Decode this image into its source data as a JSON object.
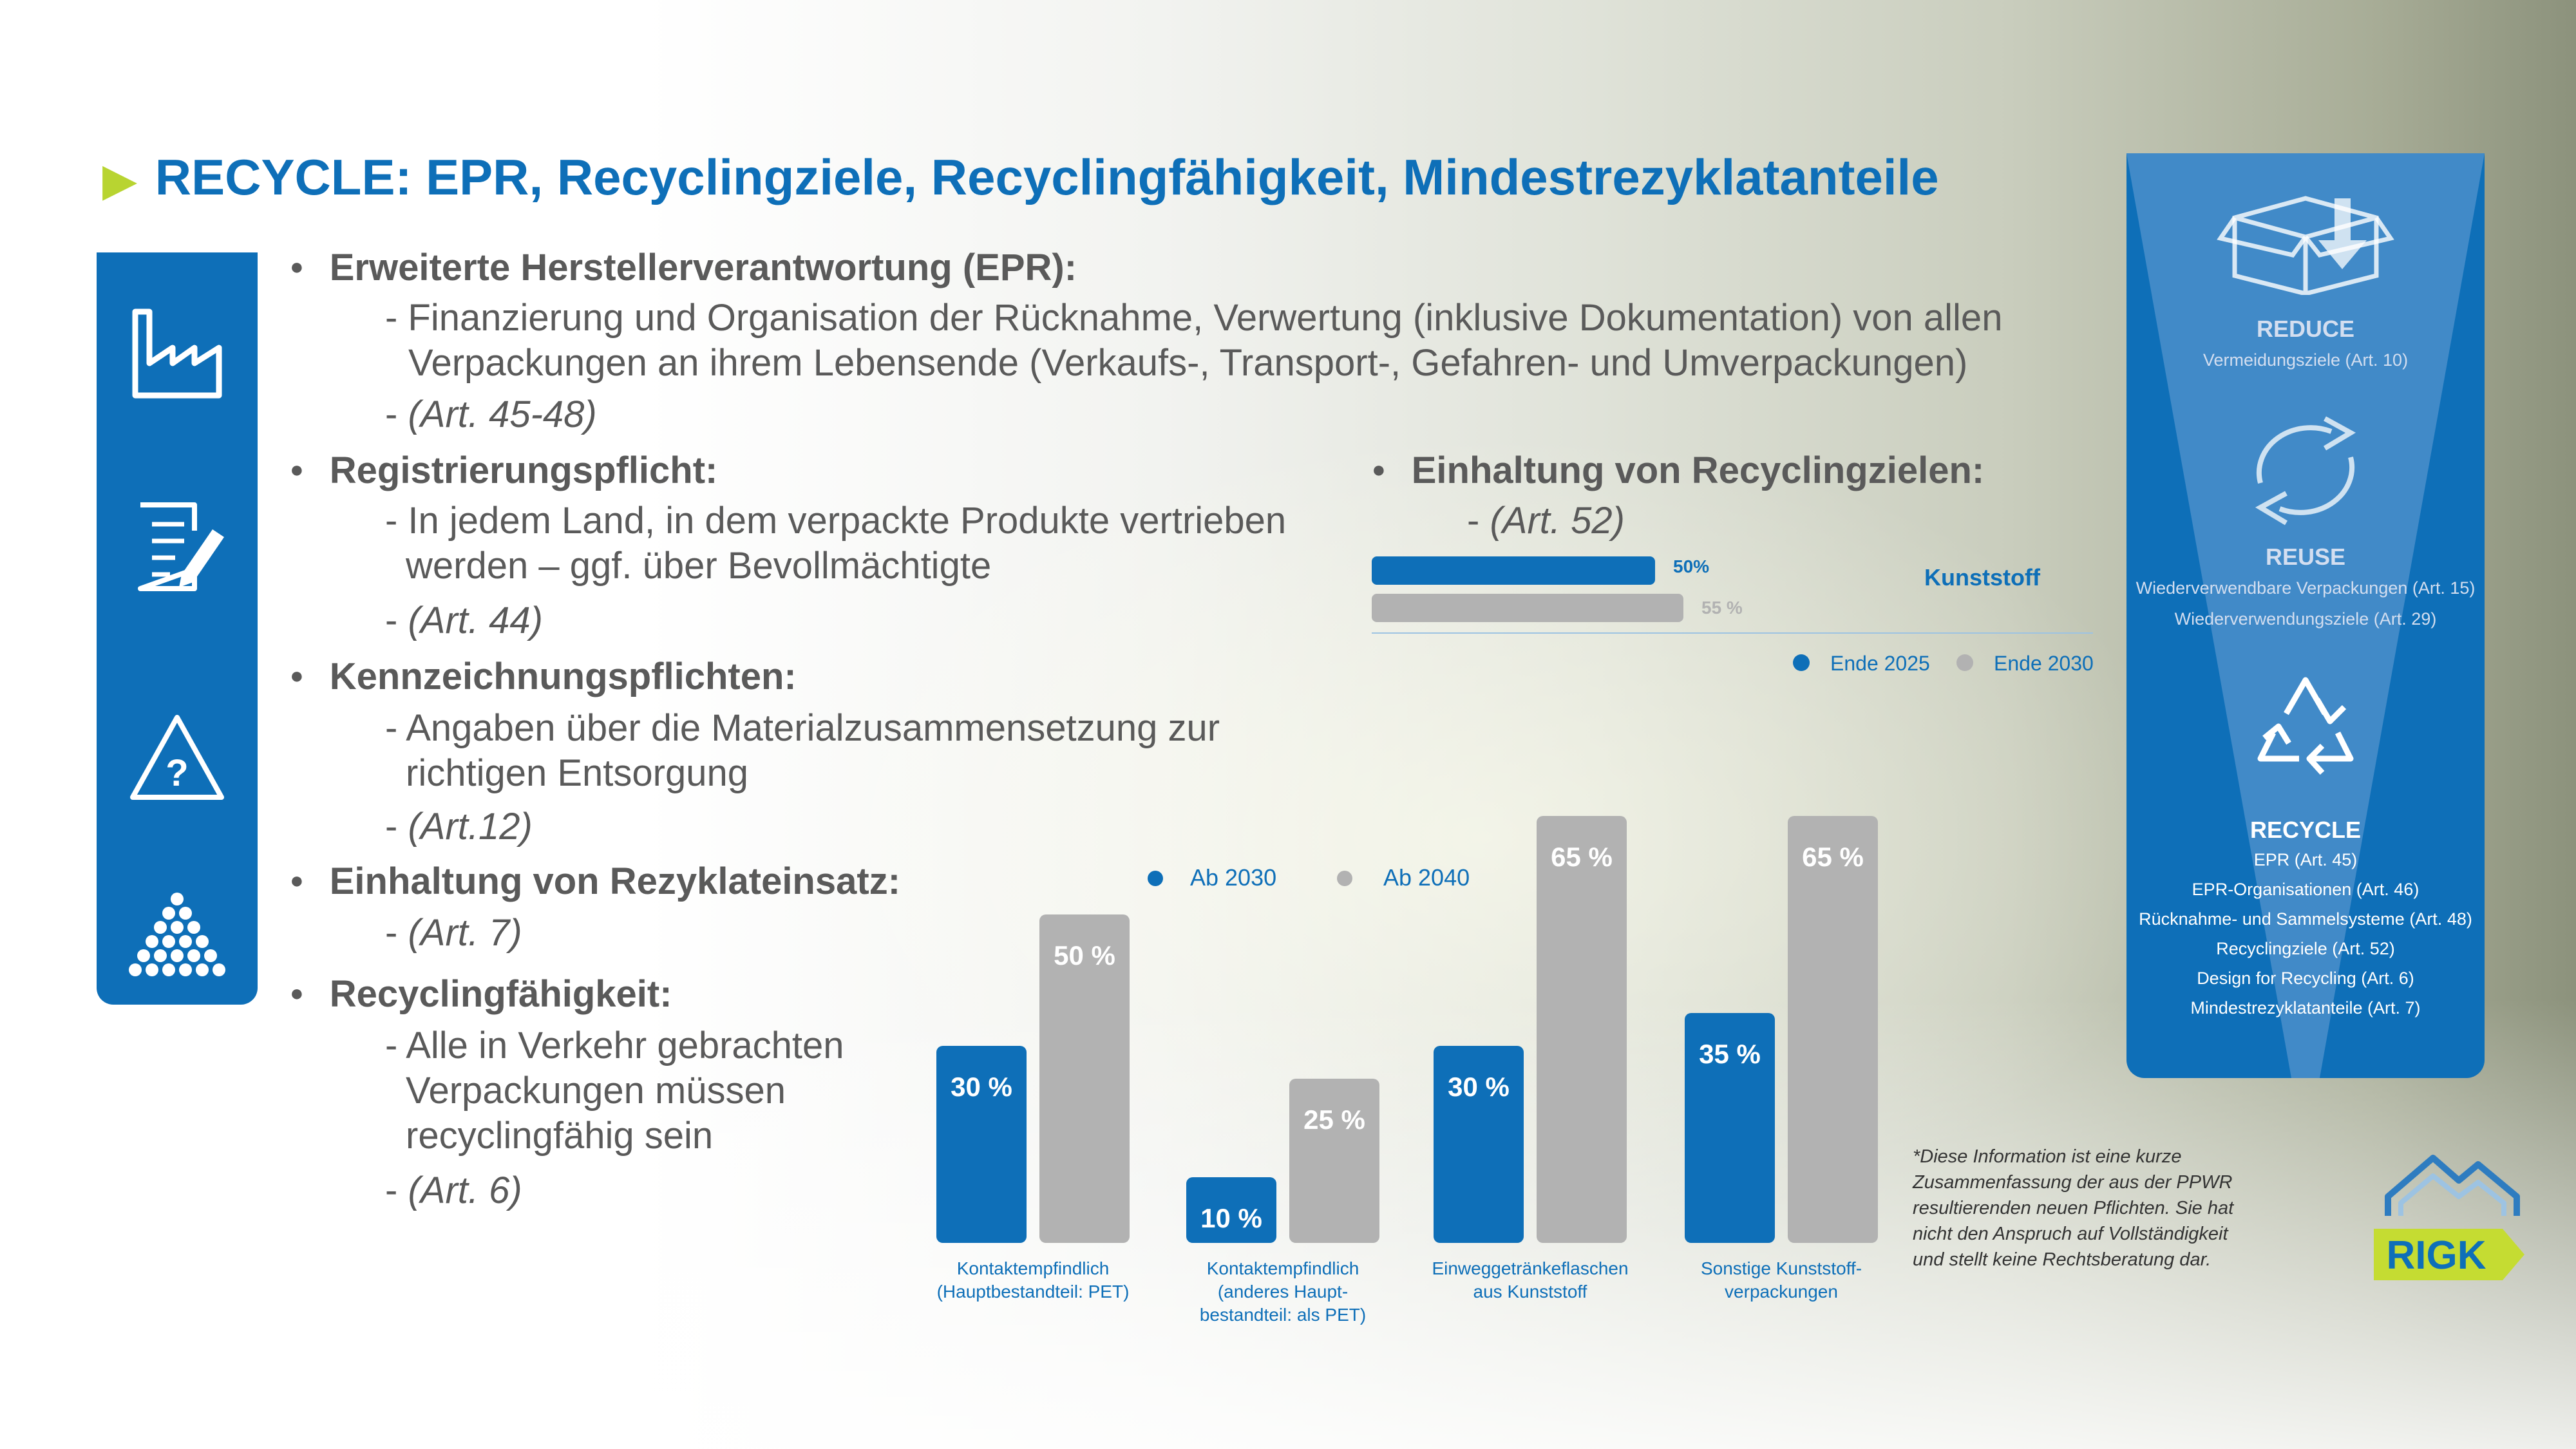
{
  "title": "RECYCLE: EPR, Recyclingziele, Recyclingfähigkeit, Mindestrezyklatanteile",
  "bullets": {
    "epr": {
      "heading": "Erweiterte Herstellerverantwortung (EPR):",
      "line1": "- Finanzierung und Organisation der Rücknahme, Verwertung (inklusive Dokumentation) von allen",
      "line2": "Verpackungen an ihrem Lebensende (Verkaufs-, Transport-, Gefahren- und Umverpackungen)",
      "ref": "(Art. 45-48)"
    },
    "registration": {
      "heading": "Registrierungspflicht:",
      "line1": "- In jedem Land, in dem verpackte Produkte vertrieben",
      "line2": "werden – ggf. über Bevollmächtigte",
      "ref": "(Art. 44)"
    },
    "labeling": {
      "heading": "Kennzeichnungspflichten:",
      "line1": "- Angaben über die Materialzusammensetzung zur",
      "line2": "richtigen Entsorgung",
      "ref": "(Art.12)"
    },
    "recyclate": {
      "heading": "Einhaltung von Rezyklateinsatz:",
      "ref": "(Art. 7)"
    },
    "recyclability": {
      "heading": "Recyclingfähigkeit:",
      "line1": "- Alle in Verkehr gebrachten",
      "line2": "Verpackungen müssen",
      "line3": "recyclingfähig sein",
      "ref": "(Art. 6)"
    },
    "targets": {
      "heading": "Einhaltung von Recyclingzielen:",
      "ref": "(Art. 52)"
    }
  },
  "ref_prefix": "- ",
  "icons": [
    "factory-icon",
    "document-pen-icon",
    "warning-question-icon",
    "pellets-icon"
  ],
  "panel": {
    "reduce": {
      "title": "REDUCE",
      "lines": [
        "Vermeidungsziele (Art. 10)"
      ]
    },
    "reuse": {
      "title": "REUSE",
      "lines": [
        "Wiederverwendbare Verpackungen (Art. 15)",
        "Wiederverwendungsziele (Art. 29)"
      ]
    },
    "recycle": {
      "title": "RECYCLE",
      "lines": [
        "EPR (Art. 45)",
        "EPR-Organisationen (Art. 46)",
        "Rücknahme- und Sammelsysteme (Art. 48)",
        "Recyclingziele (Art. 52)",
        "Design for Recycling (Art. 6)",
        "Mindestrezyklatanteile (Art. 7)"
      ]
    }
  },
  "colors": {
    "blue": "#0e6fb8",
    "grey": "#b2b2b2",
    "accent": "#b8d431"
  },
  "chart_data": [
    {
      "type": "bar",
      "orientation": "horizontal",
      "categories": [
        "Kunststoff"
      ],
      "series": [
        {
          "name": "Ende 2025",
          "values": [
            50
          ],
          "labels": [
            "50%"
          ]
        },
        {
          "name": "Ende 2030",
          "values": [
            55
          ],
          "labels": [
            "55 %"
          ]
        }
      ],
      "xlim": [
        0,
        100
      ],
      "legend": "bottom-right"
    },
    {
      "type": "bar",
      "categories": [
        "Kontaktempfindlich\n(Hauptbestandteil: PET)",
        "Kontaktempfindlich\n(anderes Haupt-\nbestandteil: als PET)",
        "Einwegge­tränkeflaschen\naus Kunststoff",
        "Sonstige Kunststoff-\nverpackungen"
      ],
      "category_lines": [
        [
          "Kontaktempfindlich",
          "(Hauptbestandteil: PET)"
        ],
        [
          "Kontaktempfindlich",
          "(anderes Haupt-",
          "bestandteil: als PET)"
        ],
        [
          "Einwegge­tränkeflaschen",
          "aus Kunststoff"
        ],
        [
          "Sonstige Kunststoff-",
          "verpackungen"
        ]
      ],
      "series": [
        {
          "name": "Ab 2030",
          "values": [
            30,
            10,
            30,
            35
          ],
          "labels": [
            "30 %",
            "10 %",
            "30 %",
            "35 %"
          ]
        },
        {
          "name": "Ab 2040",
          "values": [
            50,
            25,
            65,
            65
          ],
          "labels": [
            "50 %",
            "25 %",
            "65 %",
            "65 %"
          ]
        }
      ],
      "ylim": [
        0,
        70
      ],
      "legend": "top-left"
    }
  ],
  "note": "*Diese Information ist eine kurze Zusammenfassung der aus der PPWR resultierenden neuen Pflichten. Sie hat nicht den Anspruch auf Vollständigkeit und stellt keine Rechtsberatung dar.",
  "logo_text": "RIGK"
}
